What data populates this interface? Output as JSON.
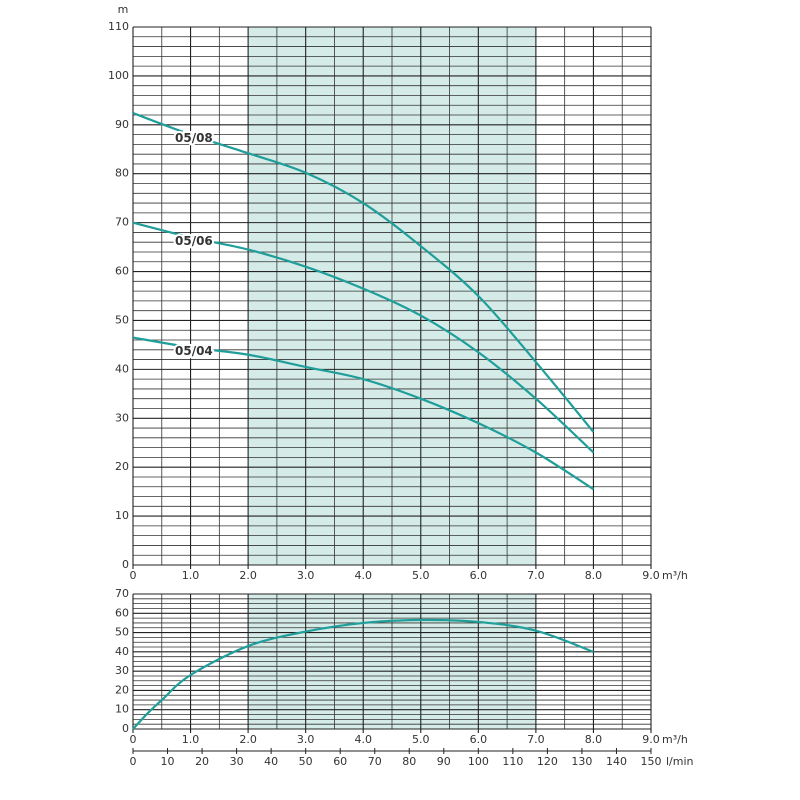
{
  "chart_data": [
    {
      "type": "line",
      "y_unit": "m",
      "x_unit": "m³/h",
      "xlim": [
        0,
        9
      ],
      "xticks": [
        0,
        {
          "value": 1,
          "label": "1.0"
        },
        {
          "value": 2,
          "label": "2.0"
        },
        {
          "value": 3,
          "label": "3.0"
        },
        {
          "value": 4,
          "label": "4.0"
        },
        {
          "value": 5,
          "label": "5.0"
        },
        {
          "value": 6,
          "label": "6.0"
        },
        {
          "value": 7,
          "label": "7.0"
        },
        {
          "value": 8,
          "label": "8.0"
        },
        {
          "value": 9,
          "label": "9.0"
        }
      ],
      "ylim": [
        0,
        110
      ],
      "yticks": [
        0,
        10,
        20,
        30,
        40,
        50,
        60,
        70,
        80,
        90,
        100,
        110
      ],
      "shaded_range": [
        2,
        7
      ],
      "grid": true,
      "x": [
        0,
        1,
        2,
        3,
        4,
        5,
        6,
        7,
        8
      ],
      "series": [
        {
          "name": "05/08",
          "color": "#1f9e9a",
          "values": [
            92.4,
            88,
            84.2,
            80.2,
            74,
            65.2,
            55,
            41.5,
            27.2
          ]
        },
        {
          "name": "05/06",
          "color": "#1f9e9a",
          "values": [
            70,
            67,
            64.5,
            61,
            56.5,
            51,
            43.5,
            34,
            23
          ]
        },
        {
          "name": "05/04",
          "color": "#1f9e9a",
          "values": [
            46.5,
            44.5,
            43,
            40.5,
            38,
            34,
            29,
            23,
            15.5
          ]
        }
      ]
    },
    {
      "type": "line",
      "x_unit": "m³/h",
      "x2_unit": "l/min",
      "xlim": [
        0,
        9
      ],
      "xticks": [
        0,
        {
          "value": 1,
          "label": "1.0"
        },
        {
          "value": 2,
          "label": "2.0"
        },
        {
          "value": 3,
          "label": "3.0"
        },
        {
          "value": 4,
          "label": "4.0"
        },
        {
          "value": 5,
          "label": "5.0"
        },
        {
          "value": 6,
          "label": "6.0"
        },
        {
          "value": 7,
          "label": "7.0"
        },
        {
          "value": 8,
          "label": "8.0"
        },
        {
          "value": 9,
          "label": "9.0"
        }
      ],
      "x2lim": [
        0,
        150
      ],
      "x2ticks": [
        0,
        10,
        20,
        30,
        40,
        50,
        60,
        70,
        80,
        90,
        100,
        110,
        120,
        130,
        140,
        150
      ],
      "ylim": [
        0,
        70
      ],
      "yticks": [
        0,
        10,
        20,
        30,
        40,
        50,
        60,
        70
      ],
      "shaded_range": [
        2,
        7
      ],
      "grid": true,
      "x": [
        0,
        0.25,
        0.5,
        1,
        2,
        3,
        4,
        5,
        6,
        7,
        8
      ],
      "series": [
        {
          "color": "#1f9e9a",
          "values": [
            0,
            8,
            15,
            28,
            43,
            50.5,
            55,
            56.5,
            55.5,
            51,
            40
          ]
        }
      ]
    }
  ]
}
